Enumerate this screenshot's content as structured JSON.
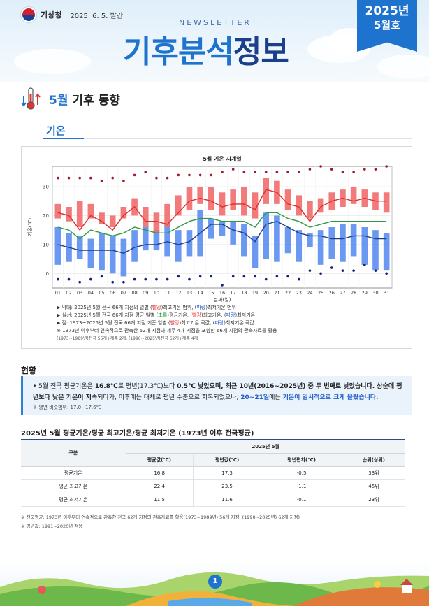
{
  "header": {
    "org": "기상청",
    "pub_date": "2025. 6. 5. 발간",
    "newsletter_label": "NEWSLETTER",
    "title_part1": "기후분석",
    "title_part2": "정보",
    "ribbon_year": "2025년",
    "ribbon_month": "5월호"
  },
  "section": {
    "title_accent": "5월",
    "title_rest": " 기후 동향",
    "tab": "기온"
  },
  "chart_data": {
    "type": "bar",
    "title": "5월 기온 시계열",
    "xlabel": "날짜(일)",
    "ylabel": "기온(℃)",
    "ylim": [
      -5,
      37
    ],
    "yticks": [
      0,
      10,
      20,
      30
    ],
    "categories": [
      "01",
      "02",
      "03",
      "04",
      "05",
      "06",
      "07",
      "08",
      "09",
      "10",
      "11",
      "12",
      "13",
      "14",
      "15",
      "16",
      "17",
      "18",
      "19",
      "20",
      "21",
      "22",
      "23",
      "24",
      "25",
      "26",
      "27",
      "28",
      "29",
      "30",
      "31"
    ],
    "max_range_low": [
      19,
      18,
      16,
      19,
      17,
      16,
      19,
      20,
      16,
      14,
      16,
      20,
      22,
      24,
      22,
      20,
      22,
      20,
      19,
      24,
      24,
      22,
      20,
      19,
      21,
      22,
      23,
      24,
      23,
      22,
      21
    ],
    "max_range_high": [
      24,
      23,
      25,
      24,
      21,
      20,
      23,
      26,
      23,
      21,
      24,
      27,
      30,
      30,
      30,
      28,
      29,
      30,
      28,
      33,
      32,
      29,
      27,
      25,
      26,
      28,
      29,
      30,
      29,
      28,
      28
    ],
    "min_range_low": [
      3,
      4,
      5,
      2,
      1,
      0,
      -1,
      4,
      8,
      8,
      6,
      4,
      6,
      6,
      12,
      13,
      10,
      6,
      2,
      5,
      4,
      7,
      4,
      9,
      3,
      5,
      4,
      6,
      3,
      1,
      1
    ],
    "min_range_high": [
      16,
      14,
      13,
      12,
      14,
      13,
      12,
      15,
      16,
      15,
      17,
      15,
      15,
      22,
      19,
      18,
      18,
      17,
      13,
      21,
      20,
      16,
      15,
      14,
      15,
      16,
      17,
      17,
      16,
      15,
      14
    ],
    "avg_max": [
      21,
      20,
      15,
      20,
      18,
      15,
      20,
      23,
      18,
      18,
      17,
      21,
      25,
      26,
      25,
      23,
      24,
      24,
      22,
      29,
      28,
      24,
      23,
      18,
      23,
      25,
      26,
      25,
      26,
      25,
      25
    ],
    "avg_mean": [
      16,
      15,
      12,
      15,
      14,
      13,
      14,
      16,
      15,
      14,
      14,
      16,
      18,
      19,
      19,
      18,
      18,
      18,
      16,
      21,
      21,
      19,
      18,
      16,
      17,
      18,
      18,
      18,
      18,
      18,
      18
    ],
    "avg_min": [
      10,
      9,
      8,
      8,
      8,
      8,
      7,
      9,
      10,
      10,
      11,
      10,
      11,
      14,
      17,
      17,
      15,
      14,
      11,
      17,
      18,
      16,
      14,
      13,
      13,
      12,
      12,
      13,
      13,
      12,
      12
    ],
    "extreme_max": [
      33,
      33,
      33,
      33,
      32,
      33,
      32,
      34,
      35,
      33,
      33,
      34,
      34,
      34,
      34,
      35,
      36,
      35,
      35,
      35,
      35,
      35,
      35,
      36,
      37,
      36,
      35,
      35,
      36,
      36,
      37
    ],
    "extreme_min": [
      -2,
      -2,
      -3,
      -2,
      -1,
      -3,
      -3,
      -2,
      -2,
      -2,
      -2,
      -1,
      -2,
      -1,
      -1,
      -4,
      -1,
      -1,
      -1,
      -2,
      -1,
      -1,
      -2,
      1,
      0,
      2,
      1,
      1,
      3,
      1,
      0
    ],
    "colors": {
      "max_range": "#f26b6b",
      "min_range": "#5b8ef0",
      "avg_max": "#d9302a",
      "avg_mean": "#2e9a44",
      "avg_min": "#1e3f8c"
    },
    "notes": {
      "n1_pre": "▶ 막대: 2025년 5월 전국 66개 지점의 일별 (",
      "n1_red": "빨강",
      "n1_mid": ")최고기온 범위, (",
      "n1_blue": "파랑",
      "n1_post": ")최저기온 범위",
      "n2_pre": "▶ 실선: 2025년 5월 전국 66개 지점 평균 일별 (",
      "n2_green": "초록",
      "n2_mid1": ")평균기온, (",
      "n2_red": "빨강",
      "n2_mid2": ")최고기온, (",
      "n2_blue": "파랑",
      "n2_post": ")최저기온",
      "n3_pre": "▶ 점: 1973~2025년 5월 전국 66개 지점 기준 일별 (",
      "n3_red": "빨강",
      "n3_mid": ")최고기온 극값, (",
      "n3_blue": "파랑",
      "n3_post": ")최저기온 극값",
      "n4": "※ 1973년 이후부터 연속적으로 관측한 62개 지점과 제주 4개 지점을 포함한 66개 지점의 관측자료를 활용",
      "n5": "(1973~1989년)전국 56개+제주 2개, (1990~2025년)전국 62개+제주 4개"
    }
  },
  "summary": {
    "heading": "현황",
    "p1_a": "• 5월 전국 평균기온은 ",
    "p1_b": "16.8℃",
    "p1_c": "로 평년(17.3℃)보다 ",
    "p1_d": "0.5℃ 낮았으며, 최근 10년(2016~2025년) 중 두 번째로 낮았습니다.",
    "p1_e": " 상순에 평년보다 낮은 기온이 지속",
    "p1_f": "되다가, 이후에는 대체로 평년 수준으로 회복되었으나, ",
    "p1_g": "20~21일",
    "p1_h": "에는 ",
    "p1_i": "기온이 일시적으로 크게 올랐습니다.",
    "footnote": "※ 평년 비슷범위: 17.0~17.6℃"
  },
  "table": {
    "title": "2025년 5월 평균기온/평균 최고기온/평균 최저기온 (1973년 이후 전국평균)",
    "col_group": "구분",
    "col_span_label": "2025년 5월",
    "headers": [
      "평균값(℃)",
      "평년값(℃)",
      "평년편차(℃)",
      "순위(상위)"
    ],
    "rows": [
      {
        "label": "평균기온",
        "values": [
          "16.8",
          "17.3",
          "-0.5",
          "33위"
        ]
      },
      {
        "label": "평균 최고기온",
        "values": [
          "22.4",
          "23.5",
          "-1.1",
          "45위"
        ]
      },
      {
        "label": "평균 최저기온",
        "values": [
          "11.5",
          "11.6",
          "-0.1",
          "23위"
        ]
      }
    ],
    "note1": "※ 전국평균: 1973년 이후부터 연속적으로 관측한 전국 62개 지점의 관측자료를 활용(1973~1989년) 56개 지점, (1990~2025년) 62개 지점)",
    "note2": "※ 평년값: 1991~2020년 적용"
  },
  "footer": {
    "page": "1"
  }
}
